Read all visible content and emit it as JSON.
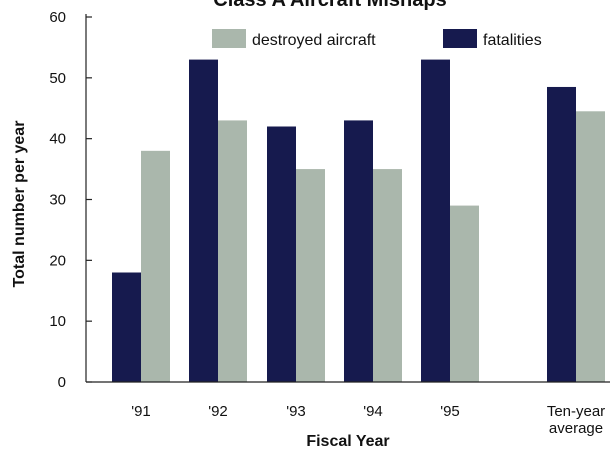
{
  "chart_data": {
    "type": "bar",
    "title": "Class A Aircraft Mishaps",
    "xlabel": "Fiscal Year",
    "ylabel": "Total number per year",
    "categories": [
      "'91",
      "'92",
      "'93",
      "'94",
      "'95",
      "Ten-year average"
    ],
    "series": [
      {
        "name": "fatalities",
        "color": "#161a4e",
        "values": [
          18,
          53,
          42,
          43,
          53,
          48.5
        ]
      },
      {
        "name": "destroyed aircraft",
        "color": "#aab7ac",
        "values": [
          38,
          43,
          35,
          35,
          29,
          44.5
        ]
      }
    ],
    "ylim": [
      0,
      60
    ],
    "yticks": [
      0,
      10,
      20,
      30,
      40,
      50,
      60
    ],
    "legend": "top-right",
    "grid": false
  }
}
